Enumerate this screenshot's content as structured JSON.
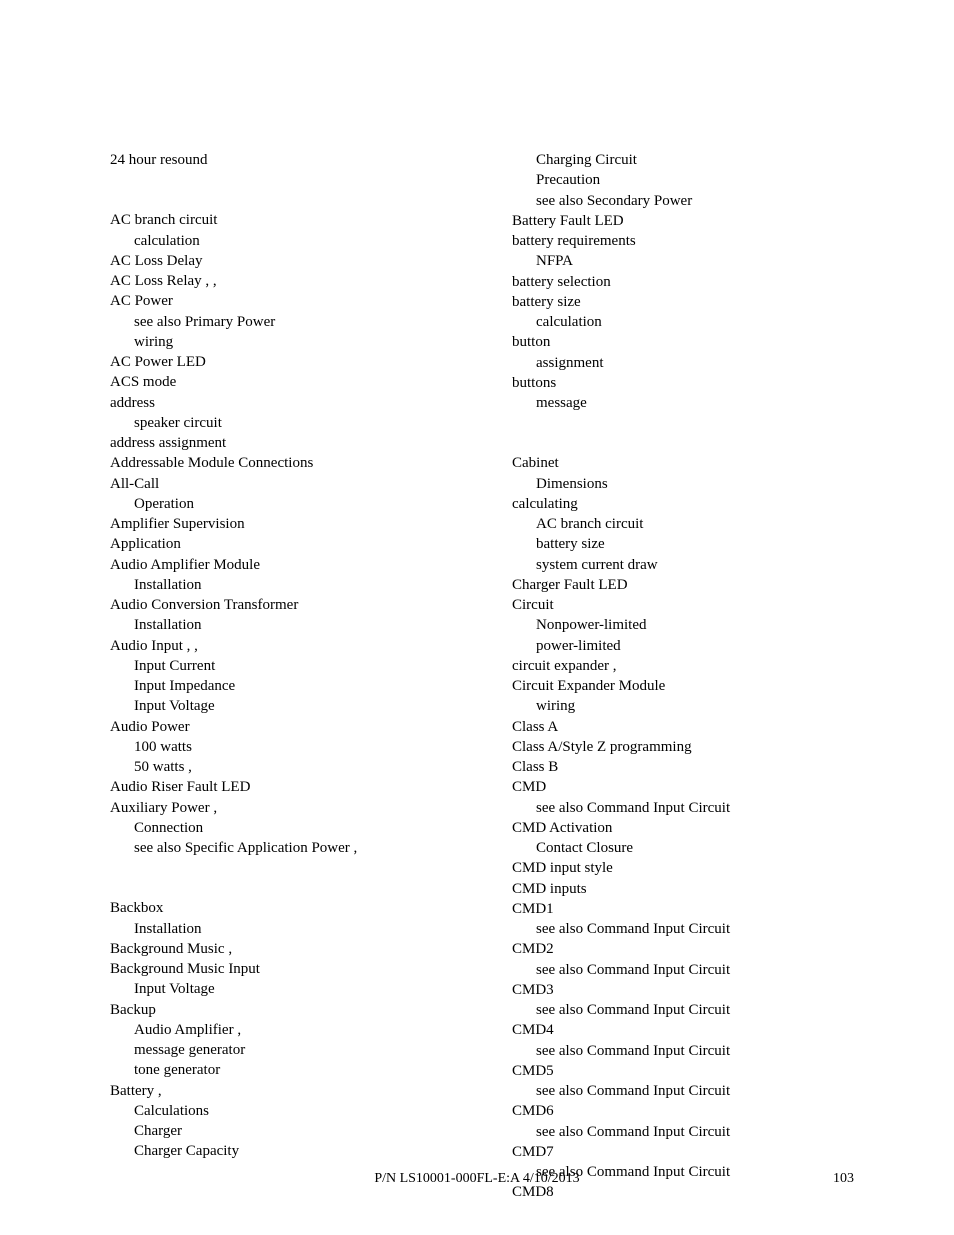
{
  "left": [
    {
      "t": "24 hour resound",
      "l": 0
    },
    {
      "gap": true
    },
    {
      "t": "AC branch circuit",
      "l": 0
    },
    {
      "t": "calculation",
      "l": 1
    },
    {
      "t": "AC Loss Delay",
      "l": 0
    },
    {
      "t": "AC Loss Relay     ,     ,",
      "l": 0
    },
    {
      "t": "AC Power",
      "l": 0
    },
    {
      "t": "see also Primary Power",
      "l": 1
    },
    {
      "t": "wiring",
      "l": 1
    },
    {
      "t": "AC Power LED",
      "l": 0
    },
    {
      "t": "ACS mode",
      "l": 0
    },
    {
      "t": "address",
      "l": 0
    },
    {
      "t": "speaker circuit",
      "l": 1
    },
    {
      "t": "address assignment",
      "l": 0
    },
    {
      "t": "Addressable Module Connections",
      "l": 0
    },
    {
      "t": "All-Call",
      "l": 0
    },
    {
      "t": "Operation",
      "l": 1
    },
    {
      "t": "Amplifier Supervision",
      "l": 0
    },
    {
      "t": "Application",
      "l": 0
    },
    {
      "t": "Audio Amplifier Module",
      "l": 0
    },
    {
      "t": "Installation",
      "l": 1
    },
    {
      "t": "Audio Conversion Transformer",
      "l": 0
    },
    {
      "t": "Installation",
      "l": 1
    },
    {
      "t": "Audio Input     ,     ,",
      "l": 0
    },
    {
      "t": "Input Current",
      "l": 1
    },
    {
      "t": "Input Impedance",
      "l": 1
    },
    {
      "t": "Input Voltage",
      "l": 1
    },
    {
      "t": "Audio Power",
      "l": 0
    },
    {
      "t": "100 watts",
      "l": 1
    },
    {
      "t": "50 watts     ,",
      "l": 1
    },
    {
      "t": "Audio Riser Fault LED",
      "l": 0
    },
    {
      "t": "Auxiliary Power     ,",
      "l": 0
    },
    {
      "t": "Connection",
      "l": 1
    },
    {
      "t": "see also Specific Application Power     ,",
      "l": 1
    },
    {
      "gap": true
    },
    {
      "t": "Backbox",
      "l": 0
    },
    {
      "t": "Installation",
      "l": 1
    },
    {
      "t": "Background Music     ,",
      "l": 0
    },
    {
      "t": "Background Music Input",
      "l": 0
    },
    {
      "t": "Input Voltage",
      "l": 1
    },
    {
      "t": "Backup",
      "l": 0
    },
    {
      "t": "Audio Amplifier     ,",
      "l": 1
    },
    {
      "t": "message generator",
      "l": 1
    },
    {
      "t": "tone generator",
      "l": 1
    },
    {
      "t": "Battery     ,",
      "l": 0
    },
    {
      "t": "Calculations",
      "l": 1
    },
    {
      "t": "Charger",
      "l": 1
    },
    {
      "t": "Charger Capacity",
      "l": 1
    }
  ],
  "right": [
    {
      "t": "Charging Circuit",
      "l": 1
    },
    {
      "t": "Precaution",
      "l": 1
    },
    {
      "t": "see also Secondary Power",
      "l": 1
    },
    {
      "t": "Battery Fault LED",
      "l": 0
    },
    {
      "t": "battery requirements",
      "l": 0
    },
    {
      "t": "NFPA",
      "l": 1
    },
    {
      "t": "battery selection",
      "l": 0
    },
    {
      "t": "battery size",
      "l": 0
    },
    {
      "t": "calculation",
      "l": 1
    },
    {
      "t": "button",
      "l": 0
    },
    {
      "t": "assignment",
      "l": 1
    },
    {
      "t": "buttons",
      "l": 0
    },
    {
      "t": "message",
      "l": 1
    },
    {
      "gap": true
    },
    {
      "t": "Cabinet",
      "l": 0
    },
    {
      "t": "Dimensions",
      "l": 1
    },
    {
      "t": "calculating",
      "l": 0
    },
    {
      "t": "AC branch circuit",
      "l": 1
    },
    {
      "t": "battery size",
      "l": 1
    },
    {
      "t": "system current draw",
      "l": 1
    },
    {
      "t": "Charger Fault LED",
      "l": 0
    },
    {
      "t": "Circuit",
      "l": 0
    },
    {
      "t": "Nonpower-limited",
      "l": 1
    },
    {
      "t": "power-limited",
      "l": 1
    },
    {
      "t": "circuit expander     ,",
      "l": 0
    },
    {
      "t": "Circuit Expander Module",
      "l": 0
    },
    {
      "t": "wiring",
      "l": 1
    },
    {
      "t": "Class A",
      "l": 0
    },
    {
      "t": "Class A/Style Z programming",
      "l": 0
    },
    {
      "t": "Class B",
      "l": 0
    },
    {
      "t": "CMD",
      "l": 0
    },
    {
      "t": "see also Command Input Circuit",
      "l": 1
    },
    {
      "t": "CMD Activation",
      "l": 0
    },
    {
      "t": "Contact Closure",
      "l": 1
    },
    {
      "t": "CMD input style",
      "l": 0
    },
    {
      "t": "CMD inputs",
      "l": 0
    },
    {
      "t": "CMD1",
      "l": 0
    },
    {
      "t": "see also Command Input Circuit",
      "l": 1
    },
    {
      "t": "CMD2",
      "l": 0
    },
    {
      "t": "see also Command Input Circuit",
      "l": 1
    },
    {
      "t": "CMD3",
      "l": 0
    },
    {
      "t": "see also Command Input Circuit",
      "l": 1
    },
    {
      "t": "CMD4",
      "l": 0
    },
    {
      "t": "see also Command Input Circuit",
      "l": 1
    },
    {
      "t": "CMD5",
      "l": 0
    },
    {
      "t": "see also Command Input Circuit",
      "l": 1
    },
    {
      "t": "CMD6",
      "l": 0
    },
    {
      "t": "see also Command Input Circuit",
      "l": 1
    },
    {
      "t": "CMD7",
      "l": 0
    },
    {
      "t": "see also Command Input Circuit",
      "l": 1
    },
    {
      "t": "CMD8",
      "l": 0
    }
  ],
  "footer": {
    "part_number": "P/N LS10001-000FL-E:A  4/10/2013",
    "page_number": "103"
  }
}
